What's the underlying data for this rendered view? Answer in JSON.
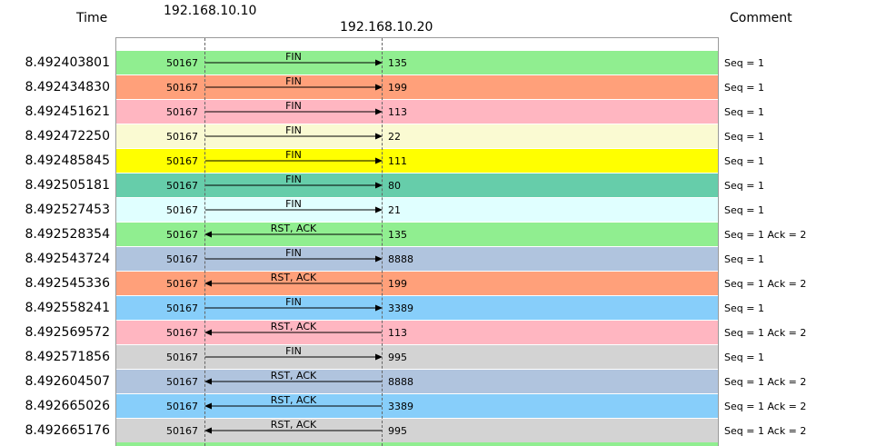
{
  "header": {
    "time_label": "Time",
    "host_a": "192.168.10.10",
    "host_b": "192.168.10.20",
    "comment_label": "Comment"
  },
  "next_row_color": "#90ee90",
  "rows": [
    {
      "time": "8.492403801",
      "port_a": "50167",
      "port_b": "135",
      "flag": "FIN",
      "direction": "a-to-b",
      "comment": "Seq = 1",
      "color": "#90ee90"
    },
    {
      "time": "8.492434830",
      "port_a": "50167",
      "port_b": "199",
      "flag": "FIN",
      "direction": "a-to-b",
      "comment": "Seq = 1",
      "color": "#ffa07a"
    },
    {
      "time": "8.492451621",
      "port_a": "50167",
      "port_b": "113",
      "flag": "FIN",
      "direction": "a-to-b",
      "comment": "Seq = 1",
      "color": "#ffb6c1"
    },
    {
      "time": "8.492472250",
      "port_a": "50167",
      "port_b": "22",
      "flag": "FIN",
      "direction": "a-to-b",
      "comment": "Seq = 1",
      "color": "#fafad2"
    },
    {
      "time": "8.492485845",
      "port_a": "50167",
      "port_b": "111",
      "flag": "FIN",
      "direction": "a-to-b",
      "comment": "Seq = 1",
      "color": "#ffff00"
    },
    {
      "time": "8.492505181",
      "port_a": "50167",
      "port_b": "80",
      "flag": "FIN",
      "direction": "a-to-b",
      "comment": "Seq = 1",
      "color": "#66cdaa"
    },
    {
      "time": "8.492527453",
      "port_a": "50167",
      "port_b": "21",
      "flag": "FIN",
      "direction": "a-to-b",
      "comment": "Seq = 1",
      "color": "#e0ffff"
    },
    {
      "time": "8.492528354",
      "port_a": "50167",
      "port_b": "135",
      "flag": "RST, ACK",
      "direction": "b-to-a",
      "comment": "Seq = 1 Ack = 2",
      "color": "#90ee90"
    },
    {
      "time": "8.492543724",
      "port_a": "50167",
      "port_b": "8888",
      "flag": "FIN",
      "direction": "a-to-b",
      "comment": "Seq = 1",
      "color": "#b0c4de"
    },
    {
      "time": "8.492545336",
      "port_a": "50167",
      "port_b": "199",
      "flag": "RST, ACK",
      "direction": "b-to-a",
      "comment": "Seq = 1 Ack = 2",
      "color": "#ffa07a"
    },
    {
      "time": "8.492558241",
      "port_a": "50167",
      "port_b": "3389",
      "flag": "FIN",
      "direction": "a-to-b",
      "comment": "Seq = 1",
      "color": "#87cefa"
    },
    {
      "time": "8.492569572",
      "port_a": "50167",
      "port_b": "113",
      "flag": "RST, ACK",
      "direction": "b-to-a",
      "comment": "Seq = 1 Ack = 2",
      "color": "#ffb6c1"
    },
    {
      "time": "8.492571856",
      "port_a": "50167",
      "port_b": "995",
      "flag": "FIN",
      "direction": "a-to-b",
      "comment": "Seq = 1",
      "color": "#d3d3d3"
    },
    {
      "time": "8.492604507",
      "port_a": "50167",
      "port_b": "8888",
      "flag": "RST, ACK",
      "direction": "b-to-a",
      "comment": "Seq = 1 Ack = 2",
      "color": "#b0c4de"
    },
    {
      "time": "8.492665026",
      "port_a": "50167",
      "port_b": "3389",
      "flag": "RST, ACK",
      "direction": "b-to-a",
      "comment": "Seq = 1 Ack = 2",
      "color": "#87cefa"
    },
    {
      "time": "8.492665176",
      "port_a": "50167",
      "port_b": "995",
      "flag": "RST, ACK",
      "direction": "b-to-a",
      "comment": "Seq = 1 Ack = 2",
      "color": "#d3d3d3"
    }
  ]
}
